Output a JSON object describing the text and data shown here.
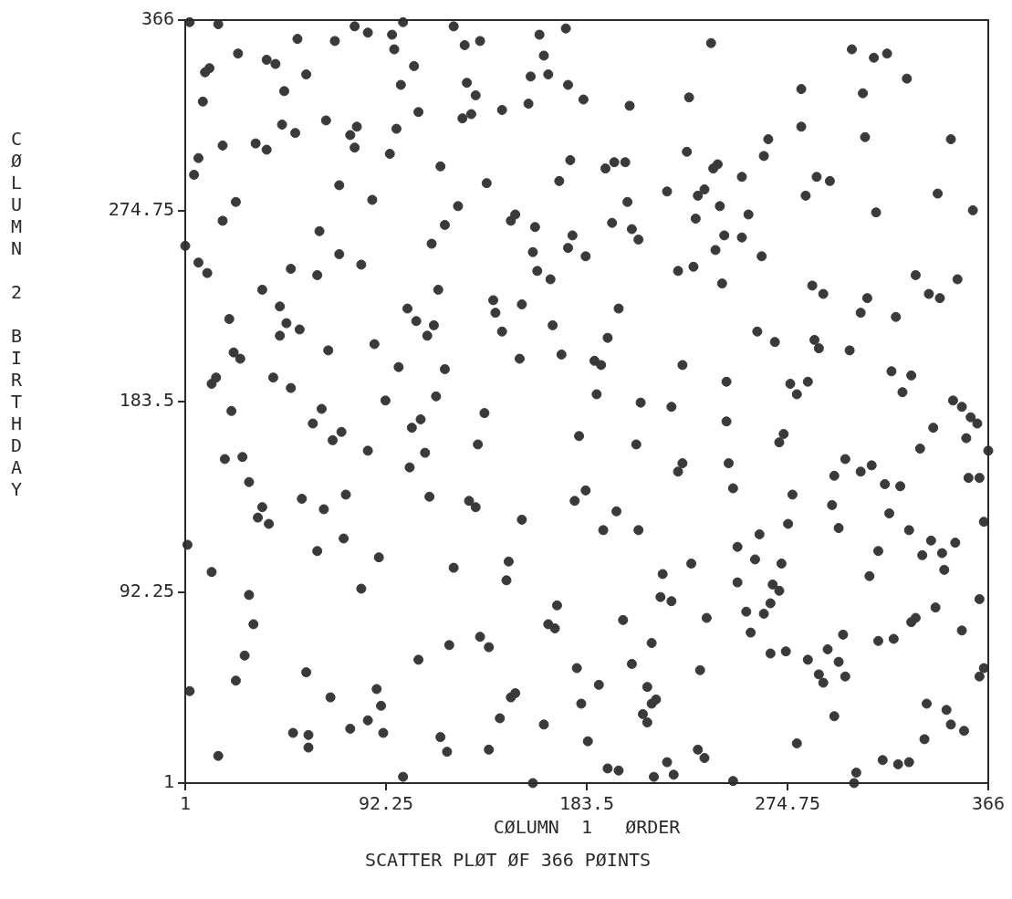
{
  "chart_data": {
    "type": "scatter",
    "title": "SCATTER PLØT ØF 366 PØINTS",
    "xlabel": "CØLUMN  1   ØRDER",
    "ylabel": "CØLUMN 2 BIRTHDAY",
    "marker": "circle",
    "grid": false,
    "xlim": [
      1,
      366
    ],
    "ylim": [
      1,
      366
    ],
    "xticks": [
      1,
      92.25,
      183.5,
      274.75,
      366
    ],
    "yticks": [
      1,
      92.25,
      183.5,
      274.75,
      366
    ],
    "series": [
      {
        "color": "#3a3a3a",
        "x": [
          3,
          16,
          78,
          84,
          95,
          100,
          123,
          52,
          69,
          128,
          135,
          162,
          174,
          96,
          25,
          164,
          10,
          12,
          38,
          42,
          105,
          56,
          99,
          129,
          133,
          158,
          166,
          175,
          182,
          46,
          9,
          107,
          127,
          131,
          145,
          157,
          45,
          51,
          65,
          76,
          79,
          78,
          97,
          18,
          33,
          38,
          94,
          7,
          5,
          117,
          138,
          176,
          171,
          71,
          86,
          24,
          125,
          18,
          151,
          149,
          160,
          177,
          175,
          62,
          119,
          113,
          1,
          71,
          7,
          49,
          81,
          159,
          183,
          11,
          61,
          161,
          167,
          240,
          304,
          314,
          320,
          329,
          281,
          309,
          230,
          203,
          281,
          266,
          310,
          349,
          264,
          229,
          192,
          196,
          201,
          241,
          243,
          254,
          288,
          294,
          220,
          234,
          237,
          283,
          343,
          359,
          315,
          202,
          244,
          233,
          257,
          195,
          204,
          207,
          246,
          254,
          242,
          263,
          225,
          232,
          333,
          352,
          36,
          44,
          21,
          47,
          53,
          44,
          116,
          102,
          106,
          114,
          111,
          141,
          142,
          154,
          168,
          145,
          23,
          26,
          66,
          87,
          98,
          119,
          153,
          172,
          13,
          15,
          41,
          49,
          92,
          115,
          22,
          63,
          59,
          68,
          72,
          108,
          104,
          137,
          134,
          180,
          84,
          110,
          19,
          27,
          103,
          30,
          74,
          54,
          112,
          130,
          133,
          183,
          178,
          36,
          34,
          39,
          64,
          154,
          245,
          286,
          291,
          339,
          344,
          311,
          308,
          324,
          198,
          193,
          261,
          269,
          287,
          289,
          303,
          187,
          190,
          227,
          322,
          331,
          327,
          247,
          276,
          279,
          284,
          188,
          208,
          222,
          350,
          354,
          358,
          361,
          341,
          356,
          335,
          366,
          247,
          273,
          271,
          206,
          227,
          225,
          248,
          301,
          296,
          308,
          313,
          319,
          326,
          357,
          362,
          250,
          277,
          197,
          295,
          321,
          364,
          191,
          207,
          262,
          275,
          298,
          330,
          2,
          61,
          73,
          89,
          13,
          123,
          148,
          147,
          30,
          81,
          170,
          166,
          169,
          32,
          121,
          135,
          139,
          28,
          107,
          179,
          24,
          56,
          3,
          67,
          88,
          90,
          84,
          76,
          91,
          151,
          149,
          181,
          144,
          164,
          50,
          57,
          57,
          117,
          120,
          139,
          16,
          100,
          159,
          184,
          252,
          260,
          272,
          316,
          340,
          351,
          336,
          345,
          346,
          231,
          218,
          252,
          312,
          268,
          271,
          217,
          222,
          362,
          342,
          333,
          331,
          267,
          264,
          256,
          200,
          238,
          354,
          258,
          300,
          316,
          323,
          213,
          293,
          267,
          274,
          284,
          298,
          204,
          235,
          289,
          291,
          301,
          364,
          362,
          189,
          211,
          215,
          213,
          209,
          211,
          296,
          338,
          347,
          349,
          355,
          337,
          279,
          234,
          237,
          193,
          198,
          220,
          223,
          214,
          250,
          306,
          305,
          318,
          325,
          330
        ],
        "values": [
          365,
          364,
          363,
          360,
          359,
          365,
          363,
          357,
          356,
          354,
          356,
          359,
          362,
          352,
          350,
          349,
          341,
          343,
          347,
          345,
          344,
          340,
          335,
          336,
          330,
          339,
          340,
          335,
          328,
          332,
          327,
          322,
          319,
          321,
          323,
          326,
          316,
          312,
          318,
          311,
          315,
          305,
          314,
          306,
          307,
          304,
          302,
          300,
          292,
          296,
          288,
          299,
          289,
          287,
          280,
          279,
          277,
          270,
          273,
          270,
          267,
          263,
          257,
          265,
          268,
          259,
          258,
          254,
          250,
          247,
          249,
          255,
          253,
          245,
          244,
          246,
          242,
          355,
          352,
          348,
          350,
          338,
          333,
          331,
          329,
          325,
          315,
          309,
          310,
          309,
          301,
          303,
          295,
          298,
          298,
          295,
          297,
          291,
          291,
          289,
          284,
          282,
          285,
          282,
          283,
          275,
          274,
          279,
          277,
          271,
          273,
          269,
          266,
          261,
          263,
          262,
          256,
          253,
          246,
          248,
          244,
          242,
          237,
          229,
          223,
          221,
          218,
          215,
          237,
          228,
          222,
          220,
          215,
          232,
          226,
          230,
          220,
          217,
          207,
          204,
          208,
          211,
          200,
          199,
          204,
          206,
          192,
          195,
          195,
          190,
          184,
          186,
          179,
          180,
          173,
          165,
          169,
          175,
          171,
          178,
          163,
          167,
          160,
          159,
          156,
          157,
          152,
          145,
          139,
          137,
          138,
          136,
          133,
          141,
          136,
          133,
          128,
          125,
          132,
          127,
          240,
          239,
          235,
          235,
          233,
          233,
          226,
          224,
          228,
          214,
          217,
          212,
          213,
          209,
          208,
          203,
          201,
          201,
          198,
          196,
          188,
          193,
          192,
          187,
          193,
          187,
          183,
          181,
          184,
          181,
          176,
          173,
          171,
          166,
          161,
          160,
          174,
          168,
          164,
          163,
          154,
          150,
          154,
          156,
          148,
          150,
          153,
          144,
          143,
          147,
          147,
          142,
          139,
          131,
          134,
          130,
          126,
          122,
          122,
          120,
          125,
          123,
          122,
          115,
          112,
          118,
          109,
          102,
          104,
          107,
          98,
          91,
          94,
          86,
          77,
          75,
          77,
          67,
          71,
          66,
          62,
          60,
          56,
          50,
          54,
          45,
          42,
          46,
          38,
          31,
          27,
          25,
          44,
          42,
          39,
          32,
          29,
          25,
          24,
          18,
          23,
          16,
          17,
          14,
          4,
          1,
          21,
          114,
          108,
          106,
          112,
          117,
          116,
          110,
          111,
          103,
          106,
          101,
          97,
          100,
          96,
          93,
          90,
          88,
          89,
          85,
          80,
          78,
          87,
          82,
          83,
          79,
          80,
          74,
          73,
          72,
          69,
          70,
          68,
          65,
          63,
          64,
          60,
          59,
          58,
          55,
          53,
          49,
          52,
          56,
          52,
          48,
          47,
          41,
          39,
          34,
          30,
          33,
          39,
          36,
          29,
          26,
          22,
          20,
          17,
          13,
          8,
          7,
          11,
          5,
          4,
          2,
          6,
          1,
          12,
          10,
          11
        ]
      }
    ]
  }
}
